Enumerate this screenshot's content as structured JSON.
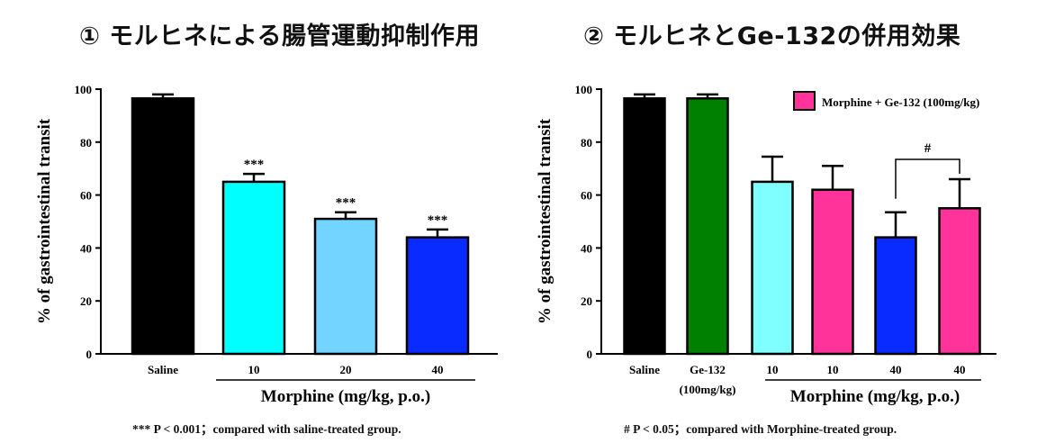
{
  "chart_data": [
    {
      "type": "bar",
      "title": "① モルヒネによる腸管運動抑制作用",
      "ylabel": "% of gastrointestinal transit",
      "ylim": [
        0,
        100
      ],
      "yticks": [
        "0",
        "20",
        "40",
        "60",
        "80",
        "100"
      ],
      "categories": [
        "Saline",
        "10",
        "20",
        "40"
      ],
      "values": [
        96.5,
        65,
        51,
        44
      ],
      "errors": [
        1.5,
        3,
        2.5,
        3
      ],
      "bar_colors": [
        "#000000",
        "#00ffff",
        "#73d4ff",
        "#0a2bff"
      ],
      "annotations": [
        "",
        "***",
        "***",
        "***"
      ],
      "group_label": "Morphine (mg/kg, p.o.)",
      "footnote": "*** P < 0.001；compared with saline-treated group."
    },
    {
      "type": "bar",
      "title": "② モルヒネとGe-132の併用効果",
      "ylabel": "% of gastrointestinal transit",
      "ylim": [
        0,
        100
      ],
      "yticks": [
        "0",
        "20",
        "40",
        "60",
        "80",
        "100"
      ],
      "categories": [
        "Saline",
        "Ge-132",
        "10",
        "10",
        "40",
        "40"
      ],
      "category_sublabels": [
        "",
        "(100mg/kg)",
        "",
        "",
        "",
        ""
      ],
      "values": [
        96.5,
        96.5,
        65,
        62,
        44,
        55
      ],
      "errors": [
        1.5,
        1.5,
        9.5,
        9,
        9.5,
        11
      ],
      "bar_colors": [
        "#000000",
        "#008000",
        "#7fffff",
        "#ff3399",
        "#0a2bff",
        "#ff3399"
      ],
      "legend": {
        "label": "Morphine + Ge-132 (100mg/kg)",
        "color": "#ff3399",
        "placement": "top-right"
      },
      "significance": {
        "label": "#",
        "from_index": 4,
        "to_index": 5
      },
      "group_label": "Morphine (mg/kg, p.o.)",
      "footnote": "# P < 0.05；compared with Morphine-treated group."
    }
  ]
}
